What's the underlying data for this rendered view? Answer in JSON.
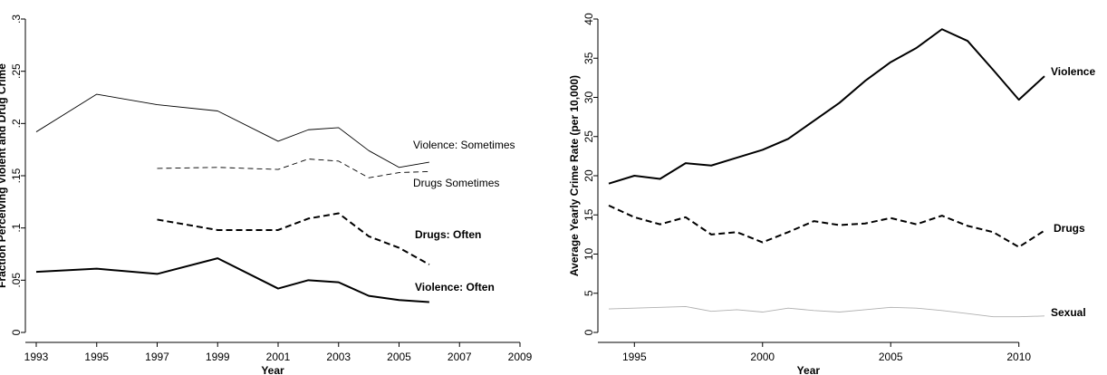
{
  "chart_data": [
    {
      "type": "line",
      "ylabel": "Fraction Perceiving Violent and Drug Crime",
      "xlabel": "Year",
      "x": [
        1993,
        1995,
        1997,
        1999,
        2001,
        2002,
        2003,
        2004,
        2005,
        2006
      ],
      "xlim": [
        1993,
        2009
      ],
      "xticks": [
        1993,
        1995,
        1997,
        1999,
        2001,
        2003,
        2005,
        2007,
        2009
      ],
      "ylim": [
        0,
        0.3
      ],
      "yticks": [
        0,
        {
          "value": 0.05,
          "label": ".05"
        },
        {
          "value": 0.1,
          "label": ".1"
        },
        {
          "value": 0.15,
          "label": ".15"
        },
        {
          "value": 0.2,
          "label": ".2"
        },
        {
          "value": 0.25,
          "label": ".25"
        },
        {
          "value": 0.3,
          "label": ".3"
        }
      ],
      "grid": false,
      "series": [
        {
          "name": "Violence: Sometimes",
          "color": "#000000",
          "style": "solid",
          "weight": "thin",
          "values": [
            0.192,
            0.228,
            0.218,
            0.212,
            0.183,
            0.194,
            0.196,
            0.174,
            0.158,
            0.163
          ]
        },
        {
          "name": "Drugs Sometimes",
          "color": "#000000",
          "style": "dashed",
          "weight": "thin",
          "values": [
            null,
            null,
            0.157,
            0.158,
            0.156,
            0.166,
            0.164,
            0.148,
            0.153,
            0.154
          ]
        },
        {
          "name": "Drugs: Often",
          "color": "#000000",
          "style": "dashed",
          "weight": "thick",
          "values": [
            null,
            null,
            0.108,
            0.098,
            0.098,
            0.109,
            0.114,
            0.092,
            0.081,
            0.065
          ]
        },
        {
          "name": "Violence: Often",
          "color": "#000000",
          "style": "solid",
          "weight": "thick",
          "values": [
            0.058,
            0.061,
            0.056,
            0.071,
            0.042,
            0.05,
            0.048,
            0.035,
            0.031,
            0.029
          ]
        }
      ]
    },
    {
      "type": "line",
      "ylabel": "Average Yearly Crime Rate (per 10,000)",
      "xlabel": "Year",
      "x": [
        1994,
        1995,
        1996,
        1997,
        1998,
        1999,
        2000,
        2001,
        2002,
        2003,
        2004,
        2005,
        2006,
        2007,
        2008,
        2009,
        2010,
        2011
      ],
      "xlim": [
        1994,
        2011
      ],
      "xticks": [
        1995,
        2000,
        2005,
        2010
      ],
      "ylim": [
        0,
        40
      ],
      "yticks": [
        0,
        5,
        10,
        15,
        20,
        25,
        30,
        35,
        40
      ],
      "grid": false,
      "series": [
        {
          "name": "Violence",
          "color": "#000000",
          "style": "solid",
          "weight": "thick",
          "values": [
            19.0,
            20.0,
            19.6,
            21.6,
            21.3,
            22.3,
            23.3,
            24.7,
            27.0,
            29.3,
            32.1,
            34.5,
            36.3,
            38.7,
            37.2,
            33.5,
            29.7,
            32.7
          ]
        },
        {
          "name": "Drugs",
          "color": "#000000",
          "style": "dashed",
          "weight": "thick",
          "values": [
            16.2,
            14.7,
            13.8,
            14.7,
            12.5,
            12.8,
            11.5,
            12.8,
            14.2,
            13.7,
            13.9,
            14.6,
            13.8,
            14.9,
            13.6,
            12.8,
            10.9,
            13.0
          ]
        },
        {
          "name": "Sexual",
          "color": "#b0b0b0",
          "style": "solid",
          "weight": "thin",
          "values": [
            3.0,
            3.1,
            3.2,
            3.3,
            2.7,
            2.9,
            2.6,
            3.1,
            2.8,
            2.6,
            2.9,
            3.2,
            3.1,
            2.8,
            2.4,
            2.0,
            2.0,
            2.1
          ]
        }
      ]
    }
  ]
}
